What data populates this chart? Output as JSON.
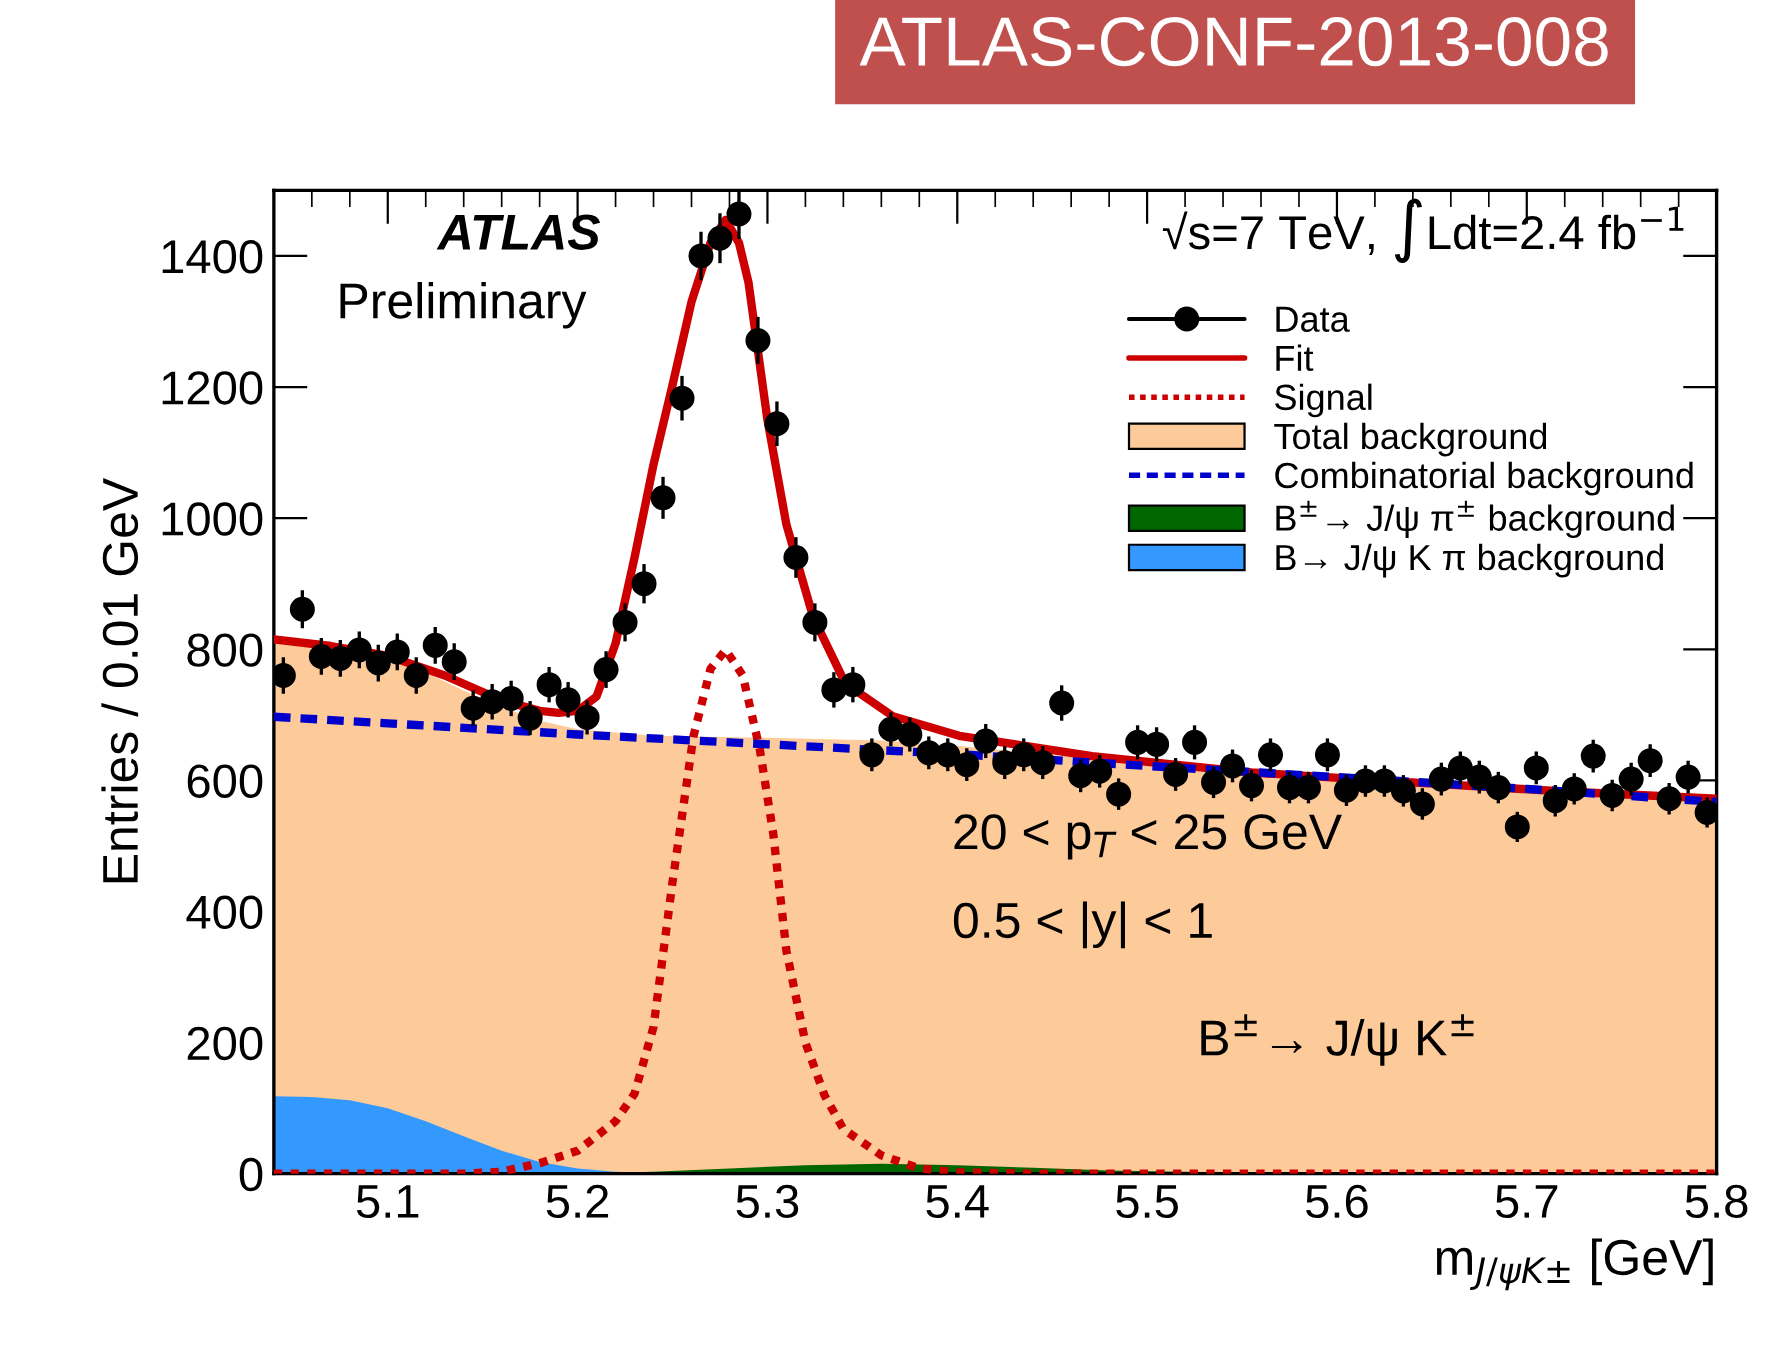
{
  "chart_data": {
    "type": "line",
    "xlabel": "m$_{J/ψK±}$ [GeV]",
    "ylabel": "Entries / 0.01 GeV",
    "xlim": [
      5.04,
      5.8
    ],
    "xticks": [
      5.1,
      5.2,
      5.3,
      5.4,
      5.5,
      5.6,
      5.7,
      5.8
    ],
    "ylim": [
      0,
      1500
    ],
    "yticks": [
      0,
      200,
      400,
      600,
      800,
      1000,
      1200,
      1400
    ],
    "grid": false,
    "legend": "top right",
    "annotations": [
      "ATLAS-CONF-2013-008",
      "ATLAS",
      "Preliminary",
      "√s=7 TeV, ∫Ldt=2.4 fb$^{−1}$",
      "20 < p$_{T}$ < 25 GeV",
      "0.5 < |y| < 1",
      "B$^{±}$→ J/ψ K$^{±}$"
    ],
    "series": [
      {
        "name": "Data",
        "type": "scatter",
        "marker": "circle",
        "color": "#000000",
        "x": [
          5.045,
          5.055,
          5.065,
          5.075,
          5.085,
          5.095,
          5.105,
          5.115,
          5.125,
          5.135,
          5.145,
          5.155,
          5.165,
          5.175,
          5.185,
          5.195,
          5.205,
          5.215,
          5.225,
          5.235,
          5.245,
          5.255,
          5.265,
          5.275,
          5.285,
          5.295,
          5.305,
          5.315,
          5.325,
          5.335,
          5.345,
          5.355,
          5.365,
          5.375,
          5.385,
          5.395,
          5.405,
          5.415,
          5.425,
          5.435,
          5.445,
          5.455,
          5.465,
          5.475,
          5.485,
          5.495,
          5.505,
          5.515,
          5.525,
          5.535,
          5.545,
          5.555,
          5.565,
          5.575,
          5.585,
          5.595,
          5.605,
          5.615,
          5.625,
          5.635,
          5.645,
          5.655,
          5.665,
          5.675,
          5.685,
          5.695,
          5.705,
          5.715,
          5.725,
          5.735,
          5.745,
          5.755,
          5.765,
          5.775,
          5.785,
          5.795
        ],
        "values": [
          760,
          861,
          789,
          786,
          799,
          779,
          796,
          760,
          806,
          781,
          710,
          720,
          725,
          695,
          746,
          723,
          696,
          769,
          841,
          900,
          1031,
          1183,
          1400,
          1427,
          1464,
          1271,
          1144,
          940,
          841,
          738,
          746,
          639,
          678,
          670,
          642,
          639,
          624,
          660,
          627,
          639,
          627,
          718,
          607,
          614,
          579,
          658,
          655,
          609,
          658,
          597,
          622,
          592,
          639,
          589,
          589,
          639,
          585,
          599,
          599,
          584,
          564,
          602,
          619,
          605,
          589,
          529,
          619,
          569,
          587,
          637,
          577,
          602,
          630,
          572,
          605,
          551
        ],
        "errors": [
          28,
          29,
          28,
          28,
          28,
          28,
          28,
          28,
          28,
          28,
          27,
          27,
          27,
          26,
          27,
          27,
          26,
          28,
          29,
          30,
          32,
          34,
          37,
          38,
          38,
          36,
          34,
          31,
          29,
          27,
          27,
          25,
          26,
          26,
          25,
          25,
          25,
          26,
          25,
          25,
          25,
          27,
          25,
          25,
          24,
          26,
          26,
          25,
          26,
          24,
          25,
          24,
          25,
          24,
          24,
          25,
          24,
          24,
          24,
          24,
          24,
          25,
          25,
          25,
          24,
          23,
          25,
          24,
          24,
          25,
          24,
          25,
          25,
          24,
          25,
          23
        ]
      },
      {
        "name": "Fit",
        "line_style": "solid",
        "color": "#cc0000",
        "x": [
          5.04,
          5.07,
          5.1,
          5.13,
          5.16,
          5.18,
          5.19,
          5.2,
          5.21,
          5.22,
          5.23,
          5.24,
          5.25,
          5.26,
          5.27,
          5.278,
          5.285,
          5.29,
          5.3,
          5.31,
          5.324,
          5.341,
          5.366,
          5.401,
          5.471,
          5.555,
          5.65,
          5.72,
          5.8
        ],
        "values": [
          815,
          805,
          790,
          760,
          722,
          706,
          703,
          706,
          728,
          809,
          940,
          1082,
          1203,
          1330,
          1420,
          1455,
          1420,
          1360,
          1150,
          990,
          850,
          748,
          698,
          668,
          637,
          612,
          595,
          583,
          572
        ]
      },
      {
        "name": "Signal",
        "line_style": "dotted",
        "color": "#cc0000",
        "x": [
          5.04,
          5.14,
          5.16,
          5.18,
          5.2,
          5.22,
          5.23,
          5.24,
          5.25,
          5.261,
          5.27,
          5.278,
          5.287,
          5.296,
          5.303,
          5.31,
          5.32,
          5.33,
          5.34,
          5.36,
          5.38,
          5.4,
          5.44,
          5.8
        ],
        "values": [
          0,
          0,
          3,
          16,
          35,
          80,
          122,
          224,
          445,
          667,
          770,
          799,
          760,
          647,
          520,
          340,
          200,
          120,
          68,
          28,
          8,
          2,
          0,
          0
        ]
      },
      {
        "name": "Total background",
        "type": "area",
        "color": "#fdca9a",
        "x": [
          5.04,
          5.06,
          5.08,
          5.1,
          5.12,
          5.14,
          5.16,
          5.18,
          5.2,
          5.24,
          5.3,
          5.36,
          5.4,
          5.5,
          5.6,
          5.7,
          5.8
        ],
        "values": [
          815,
          811,
          802,
          787,
          764,
          737,
          712,
          691,
          678,
          668,
          665,
          661,
          653,
          625,
          605,
          587,
          567
        ]
      },
      {
        "name": "Combinatorial background",
        "line_style": "dashed",
        "color": "#0000cc",
        "x": [
          5.04,
          5.1,
          5.2,
          5.3,
          5.4,
          5.5,
          5.6,
          5.7,
          5.8
        ],
        "values": [
          697,
          687,
          670,
          655,
          640,
          622,
          605,
          587,
          567
        ]
      },
      {
        "name": "B$^{±}$→ J/ψ π$^{±}$ background",
        "type": "area",
        "color": "#006600",
        "x": [
          5.2,
          5.24,
          5.28,
          5.32,
          5.36,
          5.4,
          5.44,
          5.48,
          5.52,
          5.56,
          5.6
        ],
        "values": [
          0,
          3,
          8,
          13,
          15,
          13,
          9,
          5,
          3,
          1,
          0
        ]
      },
      {
        "name": "B→ J/ψ K π background",
        "type": "area",
        "color": "#3399ff",
        "x": [
          5.04,
          5.06,
          5.08,
          5.1,
          5.12,
          5.14,
          5.16,
          5.18,
          5.2,
          5.22,
          5.24,
          5.26
        ],
        "values": [
          118,
          117,
          112,
          100,
          80,
          57,
          35,
          18,
          8,
          3,
          1,
          0
        ]
      }
    ]
  }
}
